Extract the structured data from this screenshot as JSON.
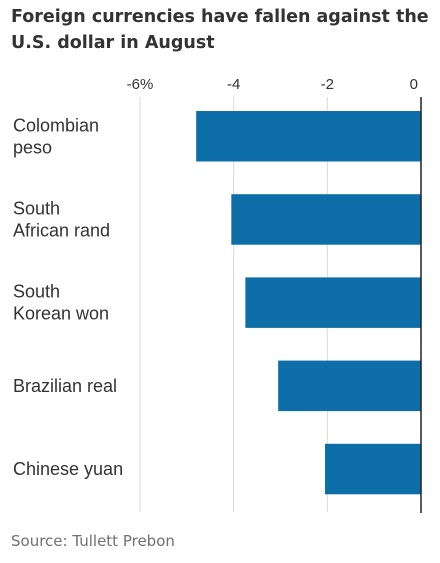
{
  "title_lines": [
    "Foreign currencies have fallen against the",
    "U.S. dollar in August"
  ],
  "source": "Source: Tullett Prebon",
  "colors": {
    "bar": "#0d6ea8",
    "grid": "#d9d9d9",
    "axis": "#222222",
    "text": "#333333"
  },
  "chart_data": {
    "type": "bar",
    "orientation": "horizontal",
    "title": "Foreign currencies have fallen against the U.S. dollar in August",
    "categories": [
      [
        "Colombian",
        "peso"
      ],
      [
        "South",
        "African rand"
      ],
      [
        "South",
        "Korean won"
      ],
      [
        "Brazilian real"
      ],
      [
        "Chinese yuan"
      ]
    ],
    "values": [
      -4.8,
      -4.05,
      -3.75,
      -3.05,
      -2.05
    ],
    "xlim": [
      -6,
      0
    ],
    "ticks": [
      -6,
      -4,
      -2,
      0
    ],
    "tick_labels": [
      "-6%",
      "-4",
      "-2",
      "0"
    ],
    "grid": true,
    "xlabel": "",
    "ylabel": ""
  }
}
